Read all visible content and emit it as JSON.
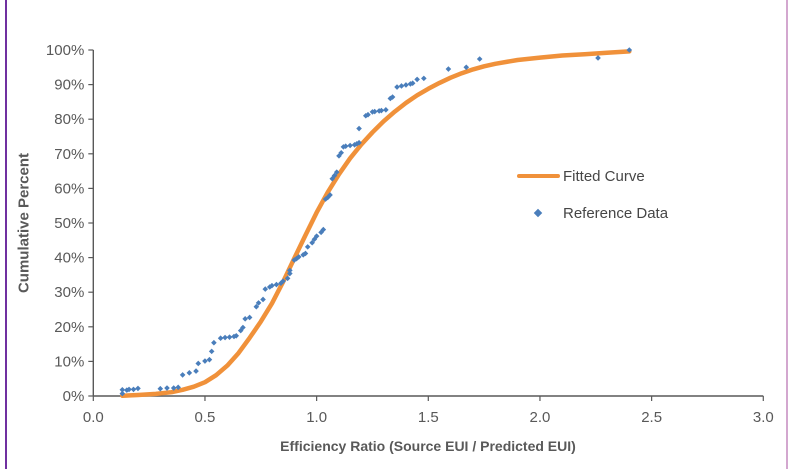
{
  "frame": {
    "left_border_color": "#7030A0",
    "right_border_color": "#D3A7CF",
    "background": "#ffffff"
  },
  "axes": {
    "x_title": "Efficiency Ratio (Source EUI / Predicted EUI)",
    "y_title": "Cumulative Percent",
    "axis_color": "#595959",
    "tick_label_color": "#595959"
  },
  "legend": {
    "fitted_label": "Fitted Curve",
    "reference_label": "Reference Data"
  },
  "chart_data": {
    "type": "scatter",
    "title": "",
    "xlabel": "Efficiency Ratio (Source EUI / Predicted EUI)",
    "ylabel": "Cumulative Percent",
    "xlim": [
      0.0,
      3.0
    ],
    "ylim": [
      0,
      100
    ],
    "grid": false,
    "legend_position": "middle-right",
    "x_ticks": [
      "0.0",
      "0.5",
      "1.0",
      "1.5",
      "2.0",
      "2.5",
      "3.0"
    ],
    "y_ticks": [
      "0%",
      "10%",
      "20%",
      "30%",
      "40%",
      "50%",
      "60%",
      "70%",
      "80%",
      "90%",
      "100%"
    ],
    "series": [
      {
        "name": "Fitted Curve",
        "type": "line",
        "color": "#F0913A",
        "stroke_width": 4.5,
        "points": [
          [
            0.13,
            0.1
          ],
          [
            0.2,
            0.3
          ],
          [
            0.28,
            0.6
          ],
          [
            0.35,
            1.1
          ],
          [
            0.4,
            1.8
          ],
          [
            0.45,
            2.7
          ],
          [
            0.5,
            4.0
          ],
          [
            0.55,
            6.0
          ],
          [
            0.6,
            8.8
          ],
          [
            0.65,
            12.4
          ],
          [
            0.7,
            16.8
          ],
          [
            0.75,
            21.5
          ],
          [
            0.8,
            26.8
          ],
          [
            0.85,
            33.0
          ],
          [
            0.9,
            39.8
          ],
          [
            0.95,
            46.5
          ],
          [
            1.0,
            53.0
          ],
          [
            1.05,
            58.9
          ],
          [
            1.1,
            64.1
          ],
          [
            1.15,
            68.7
          ],
          [
            1.2,
            72.7
          ],
          [
            1.25,
            76.2
          ],
          [
            1.3,
            79.4
          ],
          [
            1.35,
            82.2
          ],
          [
            1.4,
            84.7
          ],
          [
            1.45,
            86.9
          ],
          [
            1.5,
            88.8
          ],
          [
            1.55,
            90.5
          ],
          [
            1.6,
            92.0
          ],
          [
            1.65,
            93.3
          ],
          [
            1.7,
            94.4
          ],
          [
            1.75,
            95.3
          ],
          [
            1.8,
            96.0
          ],
          [
            1.9,
            97.1
          ],
          [
            2.0,
            97.8
          ],
          [
            2.1,
            98.4
          ],
          [
            2.2,
            98.8
          ],
          [
            2.3,
            99.2
          ],
          [
            2.4,
            99.6
          ]
        ]
      },
      {
        "name": "Reference Data",
        "type": "scatter",
        "marker": "diamond",
        "color": "#4A7EBB",
        "points": [
          [
            0.13,
            0.7
          ],
          [
            0.13,
            1.8
          ],
          [
            0.15,
            1.7
          ],
          [
            0.16,
            1.9
          ],
          [
            0.18,
            1.9
          ],
          [
            0.2,
            2.2
          ],
          [
            0.3,
            2.1
          ],
          [
            0.33,
            2.3
          ],
          [
            0.36,
            2.3
          ],
          [
            0.38,
            2.5
          ],
          [
            0.4,
            6.1
          ],
          [
            0.43,
            6.7
          ],
          [
            0.46,
            7.2
          ],
          [
            0.47,
            9.4
          ],
          [
            0.5,
            10.1
          ],
          [
            0.52,
            10.5
          ],
          [
            0.53,
            12.9
          ],
          [
            0.54,
            15.4
          ],
          [
            0.57,
            16.7
          ],
          [
            0.59,
            16.9
          ],
          [
            0.61,
            17.0
          ],
          [
            0.63,
            17.2
          ],
          [
            0.64,
            17.4
          ],
          [
            0.66,
            18.9
          ],
          [
            0.67,
            19.8
          ],
          [
            0.68,
            22.3
          ],
          [
            0.7,
            22.7
          ],
          [
            0.73,
            25.8
          ],
          [
            0.74,
            26.9
          ],
          [
            0.76,
            27.9
          ],
          [
            0.77,
            30.9
          ],
          [
            0.79,
            31.5
          ],
          [
            0.8,
            31.9
          ],
          [
            0.82,
            32.2
          ],
          [
            0.84,
            32.6
          ],
          [
            0.85,
            33.2
          ],
          [
            0.87,
            34.0
          ],
          [
            0.88,
            35.4
          ],
          [
            0.88,
            36.3
          ],
          [
            0.9,
            39.3
          ],
          [
            0.91,
            39.7
          ],
          [
            0.92,
            40.2
          ],
          [
            0.94,
            40.8
          ],
          [
            0.95,
            41.2
          ],
          [
            0.96,
            43.1
          ],
          [
            0.98,
            44.3
          ],
          [
            0.99,
            45.3
          ],
          [
            1.0,
            46.2
          ],
          [
            1.02,
            47.3
          ],
          [
            1.03,
            48.1
          ],
          [
            1.04,
            56.9
          ],
          [
            1.05,
            57.4
          ],
          [
            1.06,
            58.1
          ],
          [
            1.07,
            62.8
          ],
          [
            1.08,
            63.7
          ],
          [
            1.09,
            64.7
          ],
          [
            1.1,
            69.4
          ],
          [
            1.11,
            70.3
          ],
          [
            1.12,
            72.0
          ],
          [
            1.13,
            72.2
          ],
          [
            1.15,
            72.4
          ],
          [
            1.17,
            72.6
          ],
          [
            1.18,
            72.9
          ],
          [
            1.19,
            73.2
          ],
          [
            1.19,
            77.3
          ],
          [
            1.22,
            81.0
          ],
          [
            1.23,
            81.3
          ],
          [
            1.25,
            82.1
          ],
          [
            1.26,
            82.2
          ],
          [
            1.28,
            82.4
          ],
          [
            1.29,
            82.5
          ],
          [
            1.31,
            82.7
          ],
          [
            1.33,
            86.0
          ],
          [
            1.34,
            86.4
          ],
          [
            1.36,
            89.3
          ],
          [
            1.38,
            89.6
          ],
          [
            1.4,
            89.9
          ],
          [
            1.42,
            90.2
          ],
          [
            1.43,
            90.4
          ],
          [
            1.45,
            91.5
          ],
          [
            1.48,
            91.8
          ],
          [
            1.59,
            94.5
          ],
          [
            1.67,
            95.0
          ],
          [
            1.73,
            97.4
          ],
          [
            2.26,
            97.7
          ],
          [
            2.4,
            100.0
          ]
        ]
      }
    ]
  }
}
